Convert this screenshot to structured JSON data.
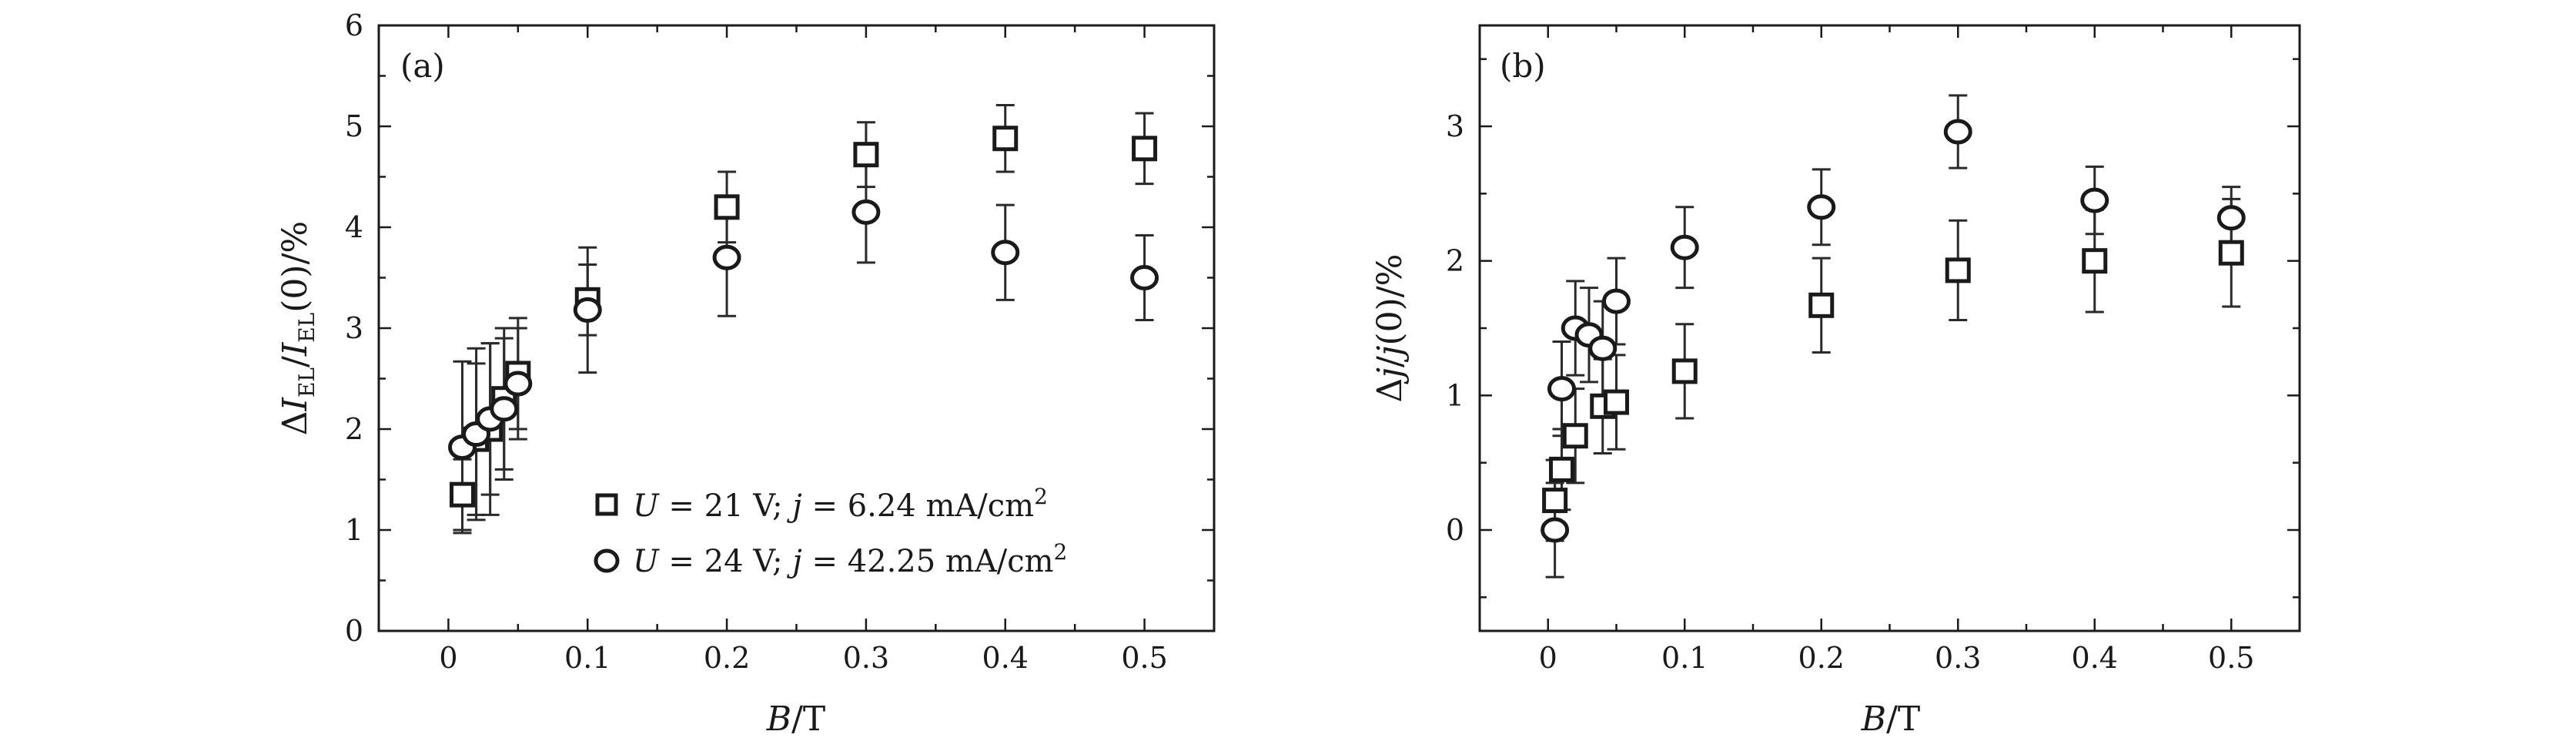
{
  "chart_data": [
    {
      "type": "scatter",
      "panel_label": "(a)",
      "xlabel": "B/T",
      "ylabel": "ΔI_EL/I_EL(0)/%",
      "xlim": [
        -0.05,
        0.55
      ],
      "ylim": [
        0,
        6
      ],
      "xticks": [
        0,
        0.1,
        0.2,
        0.3,
        0.4,
        0.5
      ],
      "xtick_labels": [
        "0",
        "0.1",
        "0.2",
        "0.3",
        "0.4",
        "0.5"
      ],
      "yticks": [
        0,
        1,
        2,
        3,
        4,
        5,
        6
      ],
      "ytick_labels": [
        "0",
        "1",
        "2",
        "3",
        "4",
        "5",
        "6"
      ],
      "legend_position": "bottom-right",
      "series": [
        {
          "name": "U = 21 V; j = 6.24 mA/cm²",
          "legend": {
            "U": "U",
            "eq1": " = 21 V; ",
            "j": "j",
            "eq2": " = 6.24 mA/cm",
            "sup": "2"
          },
          "marker": "square",
          "points": [
            {
              "x": 0.01,
              "y": 1.35,
              "err": 0.35
            },
            {
              "x": 0.02,
              "y": 1.9,
              "err": 0.75
            },
            {
              "x": 0.03,
              "y": 2.0,
              "err": 0.85
            },
            {
              "x": 0.04,
              "y": 2.3,
              "err": 0.7
            },
            {
              "x": 0.05,
              "y": 2.55,
              "err": 0.55
            },
            {
              "x": 0.1,
              "y": 3.28,
              "err": 0.35
            },
            {
              "x": 0.2,
              "y": 4.2,
              "err": 0.35
            },
            {
              "x": 0.3,
              "y": 4.72,
              "err": 0.32
            },
            {
              "x": 0.4,
              "y": 4.88,
              "err": 0.33
            },
            {
              "x": 0.5,
              "y": 4.78,
              "err": 0.35
            }
          ]
        },
        {
          "name": "U = 24 V; j = 42.25 mA/cm²",
          "legend": {
            "U": "U",
            "eq1": " = 24 V; ",
            "j": "j",
            "eq2": " = 42.25 mA/cm",
            "sup": "2"
          },
          "marker": "circle",
          "points": [
            {
              "x": 0.01,
              "y": 1.82,
              "err": 0.85
            },
            {
              "x": 0.02,
              "y": 1.95,
              "err": 0.85
            },
            {
              "x": 0.03,
              "y": 2.1,
              "err": 0.75
            },
            {
              "x": 0.04,
              "y": 2.2,
              "err": 0.7
            },
            {
              "x": 0.05,
              "y": 2.45,
              "err": 0.55
            },
            {
              "x": 0.1,
              "y": 3.18,
              "err": 0.62
            },
            {
              "x": 0.2,
              "y": 3.7,
              "err": 0.58
            },
            {
              "x": 0.3,
              "y": 4.15,
              "err": 0.5
            },
            {
              "x": 0.4,
              "y": 3.75,
              "err": 0.47
            },
            {
              "x": 0.5,
              "y": 3.5,
              "err": 0.42
            }
          ]
        }
      ]
    },
    {
      "type": "scatter",
      "panel_label": "(b)",
      "xlabel": "B/T",
      "ylabel": "Δj/j(0)/%",
      "xlim": [
        -0.05,
        0.55
      ],
      "ylim": [
        -0.75,
        3.75
      ],
      "xticks": [
        0,
        0.1,
        0.2,
        0.3,
        0.4,
        0.5
      ],
      "xtick_labels": [
        "0",
        "0.1",
        "0.2",
        "0.3",
        "0.4",
        "0.5"
      ],
      "yticks": [
        0,
        1,
        2,
        3
      ],
      "ytick_labels": [
        "0",
        "1",
        "2",
        "3"
      ],
      "series": [
        {
          "name": "U = 21 V; j = 6.24 mA/cm²",
          "marker": "square",
          "points": [
            {
              "x": 0.005,
              "y": 0.22,
              "err": 0.3
            },
            {
              "x": 0.01,
              "y": 0.45,
              "err": 0.3
            },
            {
              "x": 0.02,
              "y": 0.7,
              "err": 0.35
            },
            {
              "x": 0.04,
              "y": 0.92,
              "err": 0.35
            },
            {
              "x": 0.05,
              "y": 0.95,
              "err": 0.35
            },
            {
              "x": 0.1,
              "y": 1.18,
              "err": 0.35
            },
            {
              "x": 0.2,
              "y": 1.67,
              "err": 0.35
            },
            {
              "x": 0.3,
              "y": 1.93,
              "err": 0.37
            },
            {
              "x": 0.4,
              "y": 2.0,
              "err": 0.38
            },
            {
              "x": 0.5,
              "y": 2.06,
              "err": 0.4
            }
          ]
        },
        {
          "name": "U = 24 V; j = 42.25 mA/cm²",
          "marker": "circle",
          "points": [
            {
              "x": 0.005,
              "y": 0.0,
              "err": 0.35
            },
            {
              "x": 0.01,
              "y": 1.05,
              "err": 0.35
            },
            {
              "x": 0.02,
              "y": 1.5,
              "err": 0.35
            },
            {
              "x": 0.03,
              "y": 1.45,
              "err": 0.35
            },
            {
              "x": 0.04,
              "y": 1.35,
              "err": 0.35
            },
            {
              "x": 0.05,
              "y": 1.7,
              "err": 0.32
            },
            {
              "x": 0.1,
              "y": 2.1,
              "err": 0.3
            },
            {
              "x": 0.2,
              "y": 2.4,
              "err": 0.28
            },
            {
              "x": 0.3,
              "y": 2.96,
              "err": 0.27
            },
            {
              "x": 0.4,
              "y": 2.45,
              "err": 0.25
            },
            {
              "x": 0.5,
              "y": 2.32,
              "err": 0.23
            }
          ]
        }
      ]
    }
  ]
}
